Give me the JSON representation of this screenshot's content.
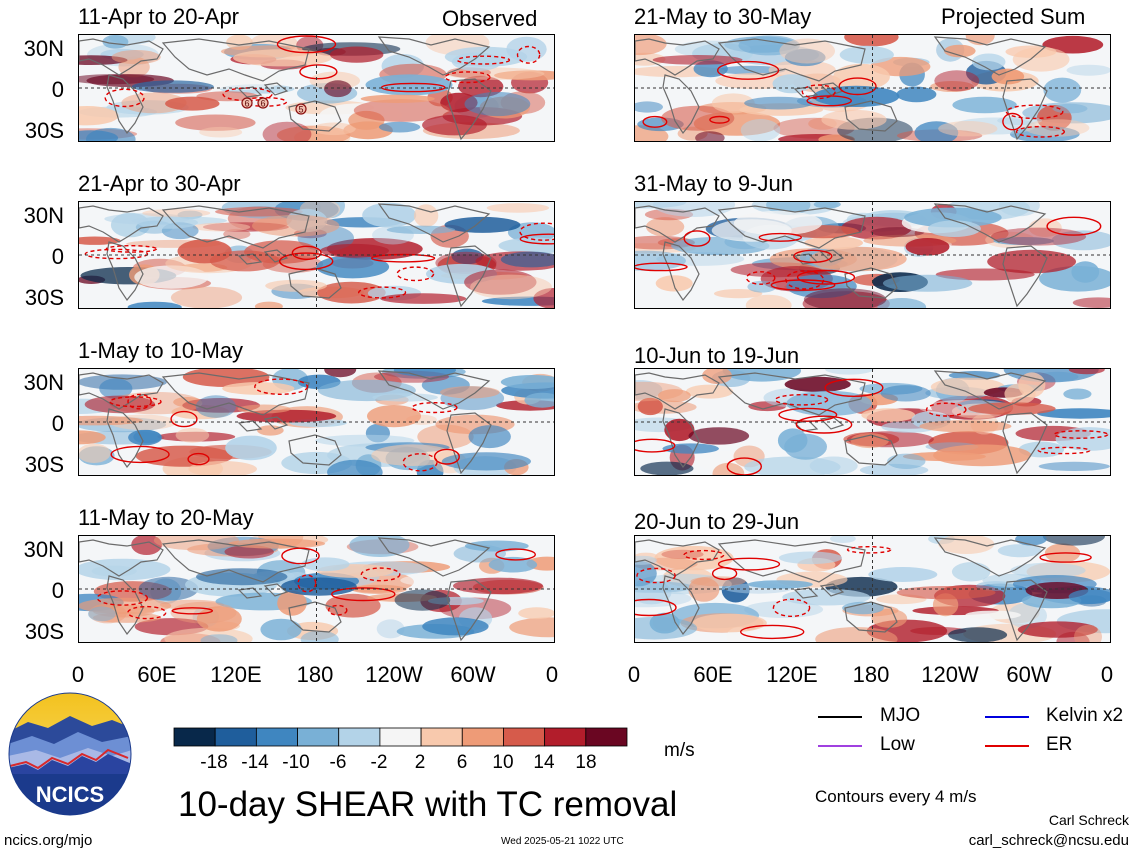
{
  "chart_data": {
    "type": "heatmap",
    "title": "10-day SHEAR with TC removal",
    "units": "m/s",
    "colorbar": {
      "tick_labels": [
        "-18",
        "-14",
        "-10",
        "-6",
        "-2",
        "2",
        "6",
        "10",
        "14",
        "18"
      ],
      "colors": [
        "#08284a",
        "#1f5e9c",
        "#3f86c0",
        "#79b0d6",
        "#b3d3e8",
        "#f5f5f5",
        "#f8c9ad",
        "#ee9b77",
        "#d65b4b",
        "#b21d2b",
        "#6a0622"
      ]
    },
    "x_tick_labels": [
      "0",
      "60E",
      "120E",
      "180",
      "120W",
      "60W",
      "0"
    ],
    "y_tick_labels": [
      "30N",
      "0",
      "30S"
    ],
    "columns": [
      {
        "label": "Observed",
        "panels": [
          "11-Apr to 20-Apr",
          "21-Apr to 30-Apr",
          "1-May to 10-May",
          "11-May to 20-May"
        ]
      },
      {
        "label": "Projected Sum",
        "panels": [
          "21-May to 30-May",
          "31-May to 9-Jun",
          "10-Jun to 19-Jun",
          "20-Jun to 29-Jun"
        ]
      }
    ],
    "tc_markers": [
      "6",
      "6",
      "5"
    ],
    "legend": [
      {
        "name": "MJO",
        "color": "#000000"
      },
      {
        "name": "Kelvin x2",
        "color": "#0000dd"
      },
      {
        "name": "Low",
        "color": "#a040e0"
      },
      {
        "name": "ER",
        "color": "#e00000"
      }
    ],
    "contour_note": "Contours every 4 m/s"
  },
  "footer": {
    "logo_text": "NCICS",
    "site": "ncics.org/mjo",
    "timestamp": "Wed 2025-05-21 1022 UTC",
    "author": "Carl Schreck",
    "email": "carl_schreck@ncsu.edu"
  }
}
